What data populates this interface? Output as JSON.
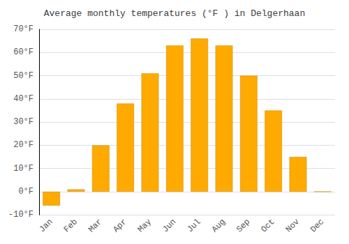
{
  "chart_data": {
    "type": "bar",
    "title": "Average monthly temperatures (°F ) in Delgerhaan",
    "categories": [
      "Jan",
      "Feb",
      "Mar",
      "Apr",
      "May",
      "Jun",
      "Jul",
      "Aug",
      "Sep",
      "Oct",
      "Nov",
      "Dec"
    ],
    "values": [
      -6,
      1,
      20,
      38,
      51,
      63,
      66,
      63,
      50,
      35,
      15,
      0
    ],
    "color": "#FFAA00",
    "ylim": [
      -10,
      70
    ],
    "yticks": [
      {
        "value": -10,
        "label": "-10°F"
      },
      {
        "value": 0,
        "label": "0°F"
      },
      {
        "value": 10,
        "label": "10°F"
      },
      {
        "value": 20,
        "label": "20°F"
      },
      {
        "value": 30,
        "label": "30°F"
      },
      {
        "value": 40,
        "label": "40°F"
      },
      {
        "value": 50,
        "label": "50°F"
      },
      {
        "value": 60,
        "label": "60°F"
      },
      {
        "value": 70,
        "label": "70°F"
      }
    ],
    "grid": true
  }
}
